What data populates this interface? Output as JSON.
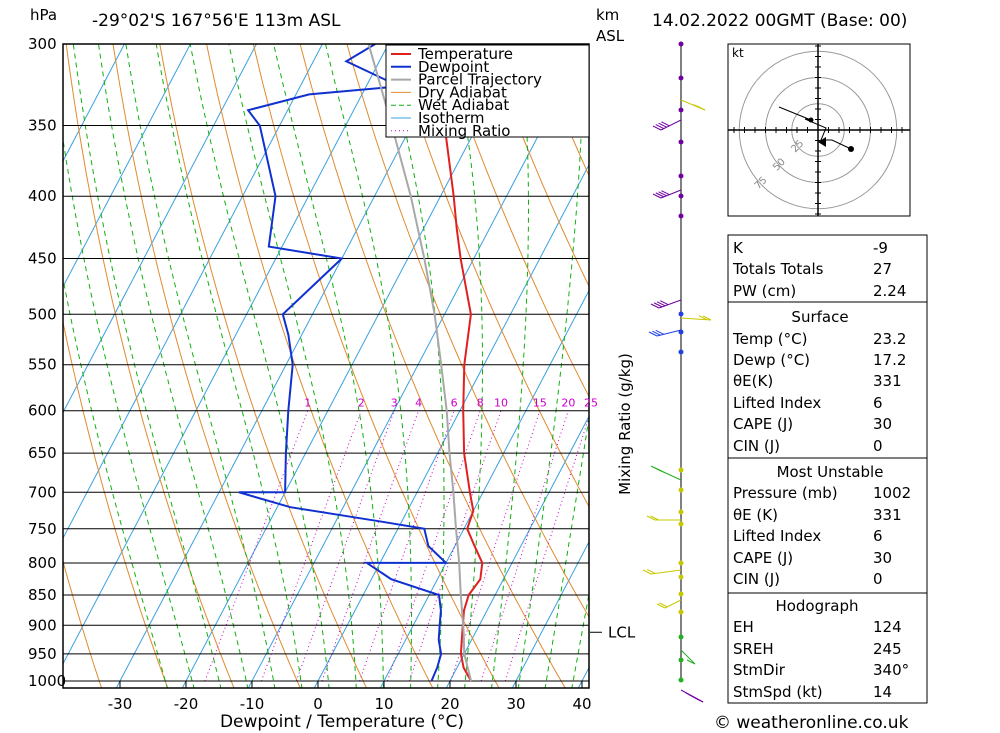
{
  "header": {
    "pressure_unit": "hPa",
    "location": "-29°02'S 167°56'E 113m ASL",
    "km_label": "km",
    "asl_label": "ASL",
    "datetime": "14.02.2022 00GMT (Base: 00)"
  },
  "footer": {
    "credit": "© weatheronline.co.uk"
  },
  "chart_data": {
    "type": "line",
    "title": "-29°02'S 167°56'E 113m ASL",
    "xlabel": "Dewpoint / Temperature (°C)",
    "ylabel": "hPa",
    "y_scale": "log (skew-T)",
    "xlim": [
      -40,
      40
    ],
    "ylim": [
      1000,
      300
    ],
    "x_ticks": [
      -30,
      -20,
      -10,
      0,
      10,
      20,
      30,
      40
    ],
    "pressure_levels": [
      300,
      350,
      400,
      450,
      500,
      550,
      600,
      650,
      700,
      750,
      800,
      850,
      900,
      950,
      1000
    ],
    "mixing_ratio_axis_label": "Mixing Ratio (g/kg)",
    "mixing_ratio_labels": [
      "1",
      "2",
      "3",
      "4",
      "6",
      "8",
      "10",
      "15",
      "20",
      "25"
    ],
    "mixing_ratio_values": [
      1,
      2,
      3,
      4,
      6,
      8,
      10,
      15,
      20,
      25
    ],
    "lcl_label": "LCL",
    "lcl_pressure": 912,
    "legend": [
      "Temperature",
      "Dewpoint",
      "Parcel Trajectory",
      "Dry Adiabat",
      "Wet Adiabat",
      "Isotherm",
      "Mixing Ratio"
    ],
    "legend_position": "top-center",
    "grid": true,
    "series": [
      {
        "name": "Temperature",
        "color": "#e02020",
        "points": [
          [
            1000,
            23.2
          ],
          [
            975,
            21.0
          ],
          [
            950,
            19.5
          ],
          [
            925,
            18.5
          ],
          [
            900,
            17.5
          ],
          [
            875,
            16.5
          ],
          [
            850,
            16.0
          ],
          [
            825,
            16.5
          ],
          [
            800,
            15.5
          ],
          [
            775,
            13.0
          ],
          [
            750,
            10.5
          ],
          [
            725,
            10.0
          ],
          [
            700,
            8.0
          ],
          [
            650,
            4.0
          ],
          [
            600,
            0.5
          ],
          [
            550,
            -3.0
          ],
          [
            500,
            -6.0
          ],
          [
            450,
            -12.0
          ],
          [
            425,
            -15.0
          ],
          [
            400,
            -18.0
          ],
          [
            350,
            -25.0
          ],
          [
            300,
            -34.0
          ]
        ]
      },
      {
        "name": "Dewpoint",
        "color": "#1030d0",
        "points": [
          [
            1000,
            17.2
          ],
          [
            975,
            17.0
          ],
          [
            950,
            16.5
          ],
          [
            925,
            15.0
          ],
          [
            900,
            14.0
          ],
          [
            875,
            13.0
          ],
          [
            850,
            11.5
          ],
          [
            825,
            3.0
          ],
          [
            800,
            -2.0
          ],
          [
            800,
            10.0
          ],
          [
            775,
            6.0
          ],
          [
            750,
            4.0
          ],
          [
            740,
            -3.0
          ],
          [
            720,
            -18.0
          ],
          [
            700,
            -27.0
          ],
          [
            700,
            -20.0
          ],
          [
            650,
            -23.0
          ],
          [
            600,
            -26.0
          ],
          [
            550,
            -29.0
          ],
          [
            520,
            -32.0
          ],
          [
            500,
            -34.5
          ],
          [
            450,
            -30.0
          ],
          [
            440,
            -42.0
          ],
          [
            400,
            -45.0
          ],
          [
            350,
            -53.0
          ],
          [
            340,
            -56.0
          ],
          [
            330,
            -48.0
          ],
          [
            325,
            -35.0
          ],
          [
            310,
            -45.0
          ],
          [
            300,
            -42.0
          ]
        ]
      },
      {
        "name": "Parcel Trajectory",
        "color": "#a8a8a8",
        "points": [
          [
            1000,
            23.2
          ],
          [
            950,
            20.0
          ],
          [
            912,
            18.2
          ],
          [
            850,
            14.8
          ],
          [
            800,
            12.0
          ],
          [
            750,
            8.8
          ],
          [
            700,
            5.5
          ],
          [
            650,
            1.8
          ],
          [
            600,
            -2.0
          ],
          [
            550,
            -6.5
          ],
          [
            500,
            -11.5
          ],
          [
            450,
            -17.5
          ],
          [
            400,
            -24.5
          ],
          [
            350,
            -33.0
          ],
          [
            300,
            -43.0
          ]
        ]
      }
    ],
    "wind_barb_colors": [
      "#7000a0",
      "#c8c800",
      "#2040e0",
      "#20b020"
    ],
    "hodograph": {
      "unit": "kt",
      "ring_labels": [
        "25",
        "50",
        "75"
      ],
      "ring_values": [
        25,
        50,
        75
      ]
    }
  },
  "indices": {
    "k_label": "K",
    "k_value": "-9",
    "tt_label": "Totals Totals",
    "tt_value": "27",
    "pw_label": "PW (cm)",
    "pw_value": "2.24",
    "surface_title": "Surface",
    "s_temp_label": "Temp (°C)",
    "s_temp_value": "23.2",
    "s_dewp_label": "Dewp (°C)",
    "s_dewp_value": "17.2",
    "s_theta_label": "θE(K)",
    "s_theta_value": "331",
    "s_li_label": "Lifted Index",
    "s_li_value": "6",
    "s_cape_label": "CAPE (J)",
    "s_cape_value": "30",
    "s_cin_label": "CIN (J)",
    "s_cin_value": "0",
    "mu_title": "Most Unstable",
    "mu_pressure_label": "Pressure (mb)",
    "mu_pressure_value": "1002",
    "mu_theta_label": "θE (K)",
    "mu_theta_value": "331",
    "mu_li_label": "Lifted Index",
    "mu_li_value": "6",
    "mu_cape_label": "CAPE (J)",
    "mu_cape_value": "30",
    "mu_cin_label": "CIN (J)",
    "mu_cin_value": "0",
    "hodo_title": "Hodograph",
    "eh_label": "EH",
    "eh_value": "124",
    "sreh_label": "SREH",
    "sreh_value": "245",
    "stmdir_label": "StmDir",
    "stmdir_value": "340°",
    "stmspd_label": "StmSpd (kt)",
    "stmspd_value": "14"
  }
}
